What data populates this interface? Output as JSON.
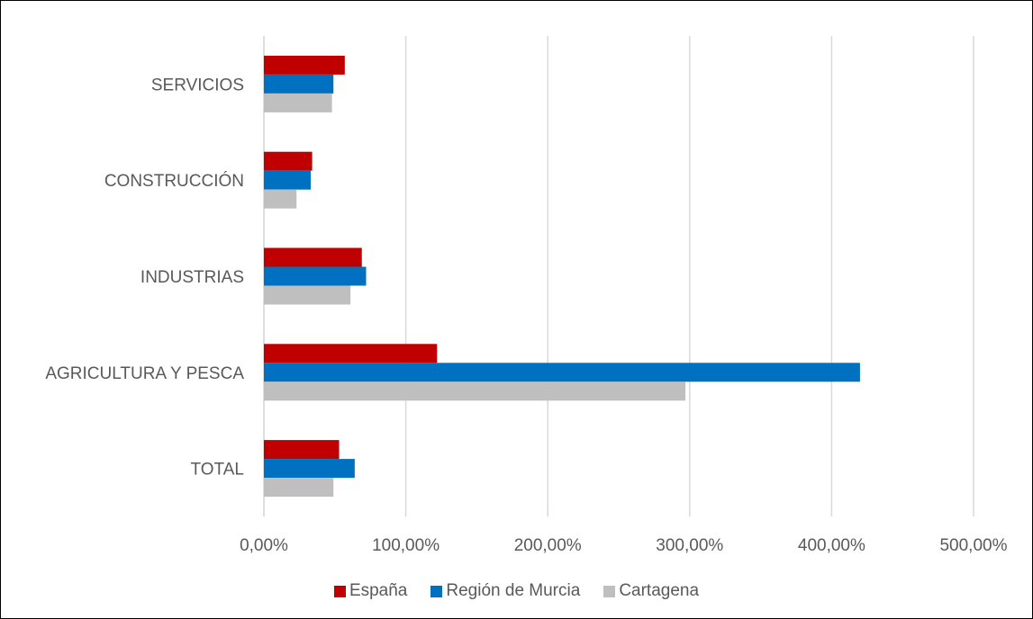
{
  "chart_data": {
    "type": "bar",
    "orientation": "horizontal",
    "categories": [
      "TOTAL",
      "AGRICULTURA Y PESCA",
      "INDUSTRIAS",
      "CONSTRUCCIÓN",
      "SERVICIOS"
    ],
    "series": [
      {
        "name": "España",
        "color": "#C00000",
        "values": [
          53,
          122,
          69,
          34,
          57
        ]
      },
      {
        "name": "Región de Murcia",
        "color": "#0070C0",
        "values": [
          64,
          420,
          72,
          33,
          49
        ]
      },
      {
        "name": "Cartagena",
        "color": "#BFBFBF",
        "values": [
          49,
          297,
          61,
          23,
          48
        ]
      }
    ],
    "xlim": [
      0,
      500
    ],
    "xticks": [
      0,
      100,
      200,
      300,
      400,
      500
    ],
    "xtick_labels": [
      "0,00%",
      "100,00%",
      "200,00%",
      "300,00%",
      "400,00%",
      "500,00%"
    ],
    "value_unit": "percent",
    "grid": "vertical",
    "legend_position": "bottom"
  }
}
